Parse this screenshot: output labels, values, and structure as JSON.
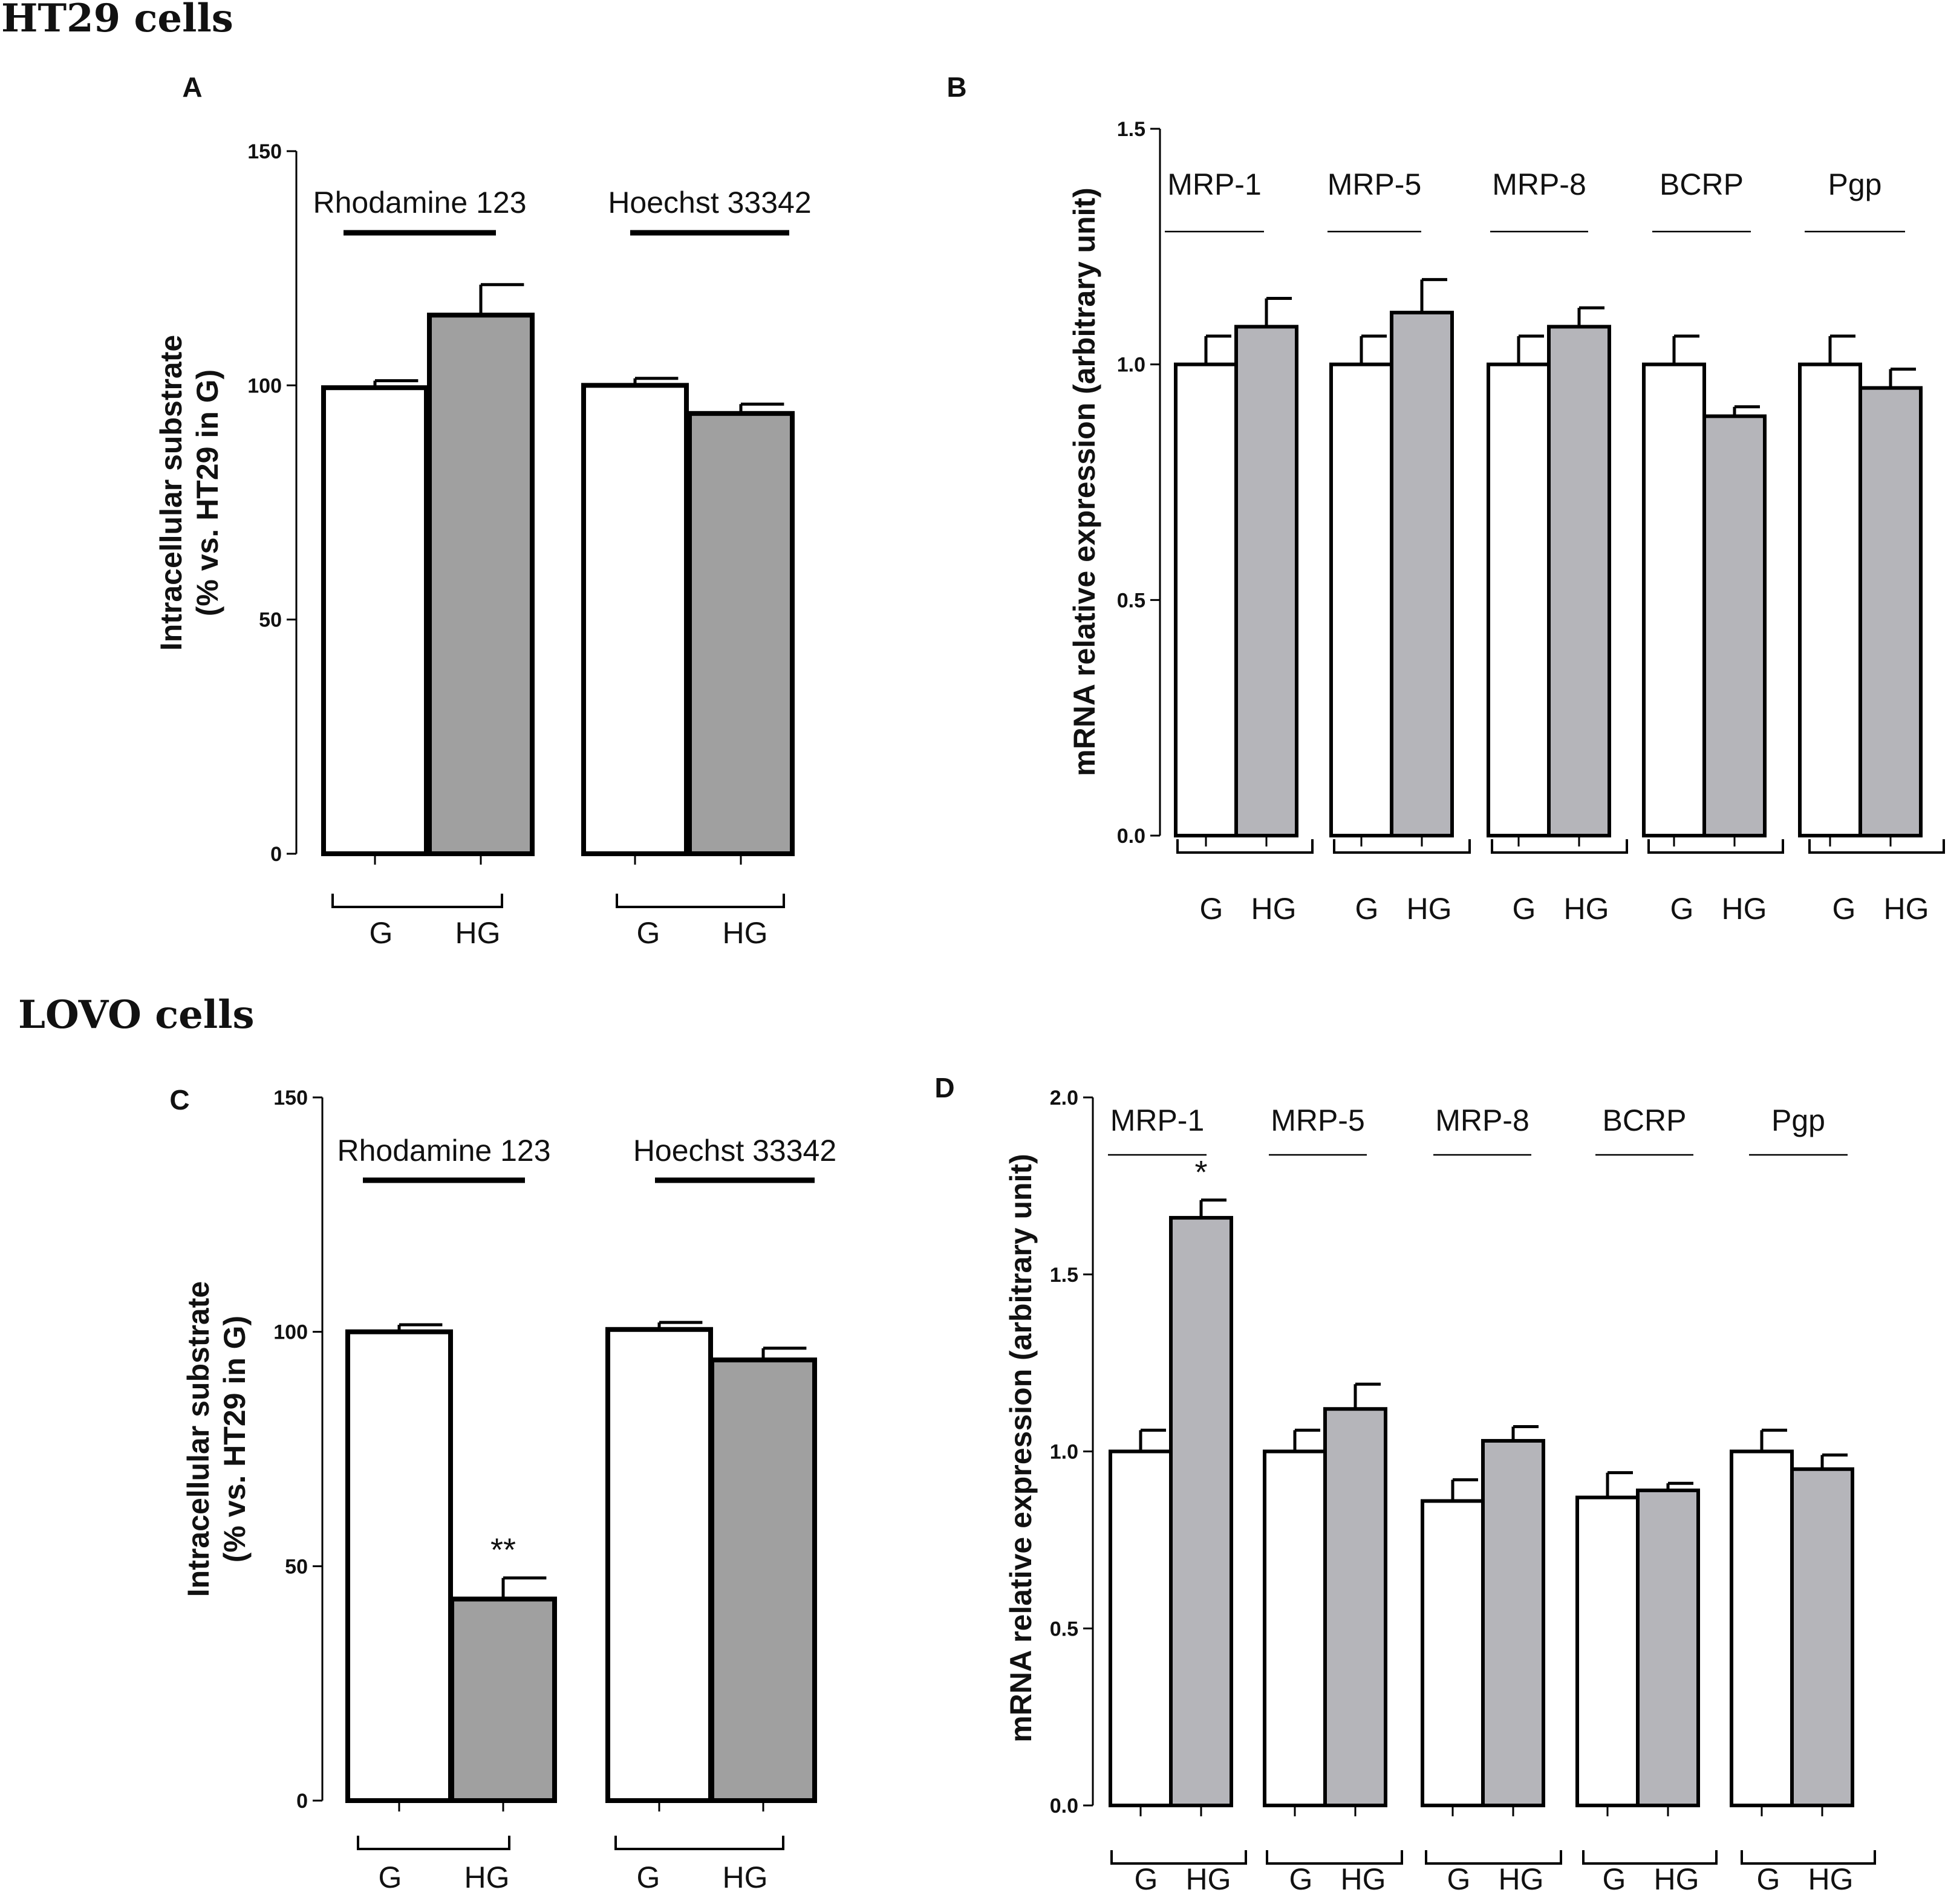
{
  "sections": {
    "top": "HT29 cells",
    "bottom": "LOVO cells"
  },
  "colors": {
    "g_fill": "#ffffff",
    "hg_fill_ad": "#a0a0a0",
    "hg_fill_bd": "#b5b5ba",
    "stroke": "#000000"
  },
  "chart_data": [
    {
      "panel": "A",
      "type": "bar",
      "ylabel": [
        "Intracellular substrate",
        "(% vs. HT29 in G)"
      ],
      "ylim": [
        0,
        150
      ],
      "yticks": [
        "0",
        "50",
        "100",
        "150"
      ],
      "groups": [
        {
          "label": "Rhodamine 123",
          "categories": [
            "G",
            "HG"
          ],
          "values": [
            99.5,
            115
          ],
          "errors": [
            1.5,
            6.5
          ],
          "annotations": [
            "",
            ""
          ]
        },
        {
          "label": "Hoechst 33342",
          "categories": [
            "G",
            "HG"
          ],
          "values": [
            100,
            94
          ],
          "errors": [
            1.5,
            2.0
          ],
          "annotations": [
            "",
            ""
          ]
        }
      ]
    },
    {
      "panel": "B",
      "type": "bar",
      "ylabel": [
        "mRNA relative expression (arbitrary unit)"
      ],
      "ylim": [
        0,
        1.5
      ],
      "yticks": [
        "0.0",
        "0.5",
        "1.0",
        "1.5"
      ],
      "groups": [
        {
          "label": "MRP-1",
          "categories": [
            "G",
            "HG"
          ],
          "values": [
            1.0,
            1.08
          ],
          "errors": [
            0.06,
            0.06
          ],
          "annotations": [
            "",
            ""
          ]
        },
        {
          "label": "MRP-5",
          "categories": [
            "G",
            "HG"
          ],
          "values": [
            1.0,
            1.11
          ],
          "errors": [
            0.06,
            0.07
          ],
          "annotations": [
            "",
            ""
          ]
        },
        {
          "label": "MRP-8",
          "categories": [
            "G",
            "HG"
          ],
          "values": [
            1.0,
            1.08
          ],
          "errors": [
            0.06,
            0.04
          ],
          "annotations": [
            "",
            ""
          ]
        },
        {
          "label": "BCRP",
          "categories": [
            "G",
            "HG"
          ],
          "values": [
            1.0,
            0.89
          ],
          "errors": [
            0.06,
            0.02
          ],
          "annotations": [
            "",
            ""
          ]
        },
        {
          "label": "Pgp",
          "categories": [
            "G",
            "HG"
          ],
          "values": [
            1.0,
            0.95
          ],
          "errors": [
            0.06,
            0.04
          ],
          "annotations": [
            "",
            ""
          ]
        }
      ]
    },
    {
      "panel": "C",
      "type": "bar",
      "ylabel": [
        "Intracellular substrate",
        "(% vs. HT29 in G)"
      ],
      "ylim": [
        0,
        150
      ],
      "yticks": [
        "0",
        "50",
        "100",
        "150"
      ],
      "groups": [
        {
          "label": "Rhodamine 123",
          "categories": [
            "G",
            "HG"
          ],
          "values": [
            100,
            43
          ],
          "errors": [
            1.5,
            4.5
          ],
          "annotations": [
            "",
            "**"
          ]
        },
        {
          "label": "Hoechst 33342",
          "categories": [
            "G",
            "HG"
          ],
          "values": [
            100.5,
            94
          ],
          "errors": [
            1.5,
            2.5
          ],
          "annotations": [
            "",
            ""
          ]
        }
      ]
    },
    {
      "panel": "D",
      "type": "bar",
      "ylabel": [
        "mRNA relative expression (arbitrary unit)"
      ],
      "ylim": [
        0,
        2.0
      ],
      "yticks": [
        "0.0",
        "0.5",
        "1.0",
        "1.5",
        "2.0"
      ],
      "groups": [
        {
          "label": "MRP-1",
          "categories": [
            "G",
            "HG"
          ],
          "values": [
            1.0,
            1.66
          ],
          "errors": [
            0.06,
            0.05
          ],
          "annotations": [
            "",
            "*"
          ]
        },
        {
          "label": "MRP-5",
          "categories": [
            "G",
            "HG"
          ],
          "values": [
            1.0,
            1.12
          ],
          "errors": [
            0.06,
            0.07
          ],
          "annotations": [
            "",
            ""
          ]
        },
        {
          "label": "MRP-8",
          "categories": [
            "G",
            "HG"
          ],
          "values": [
            0.86,
            1.03
          ],
          "errors": [
            0.06,
            0.04
          ],
          "annotations": [
            "",
            ""
          ]
        },
        {
          "label": "BCRP",
          "categories": [
            "G",
            "HG"
          ],
          "values": [
            0.87,
            0.89
          ],
          "errors": [
            0.07,
            0.02
          ],
          "annotations": [
            "",
            ""
          ]
        },
        {
          "label": "Pgp",
          "categories": [
            "G",
            "HG"
          ],
          "values": [
            1.0,
            0.95
          ],
          "errors": [
            0.06,
            0.04
          ],
          "annotations": [
            "",
            ""
          ]
        }
      ]
    }
  ]
}
